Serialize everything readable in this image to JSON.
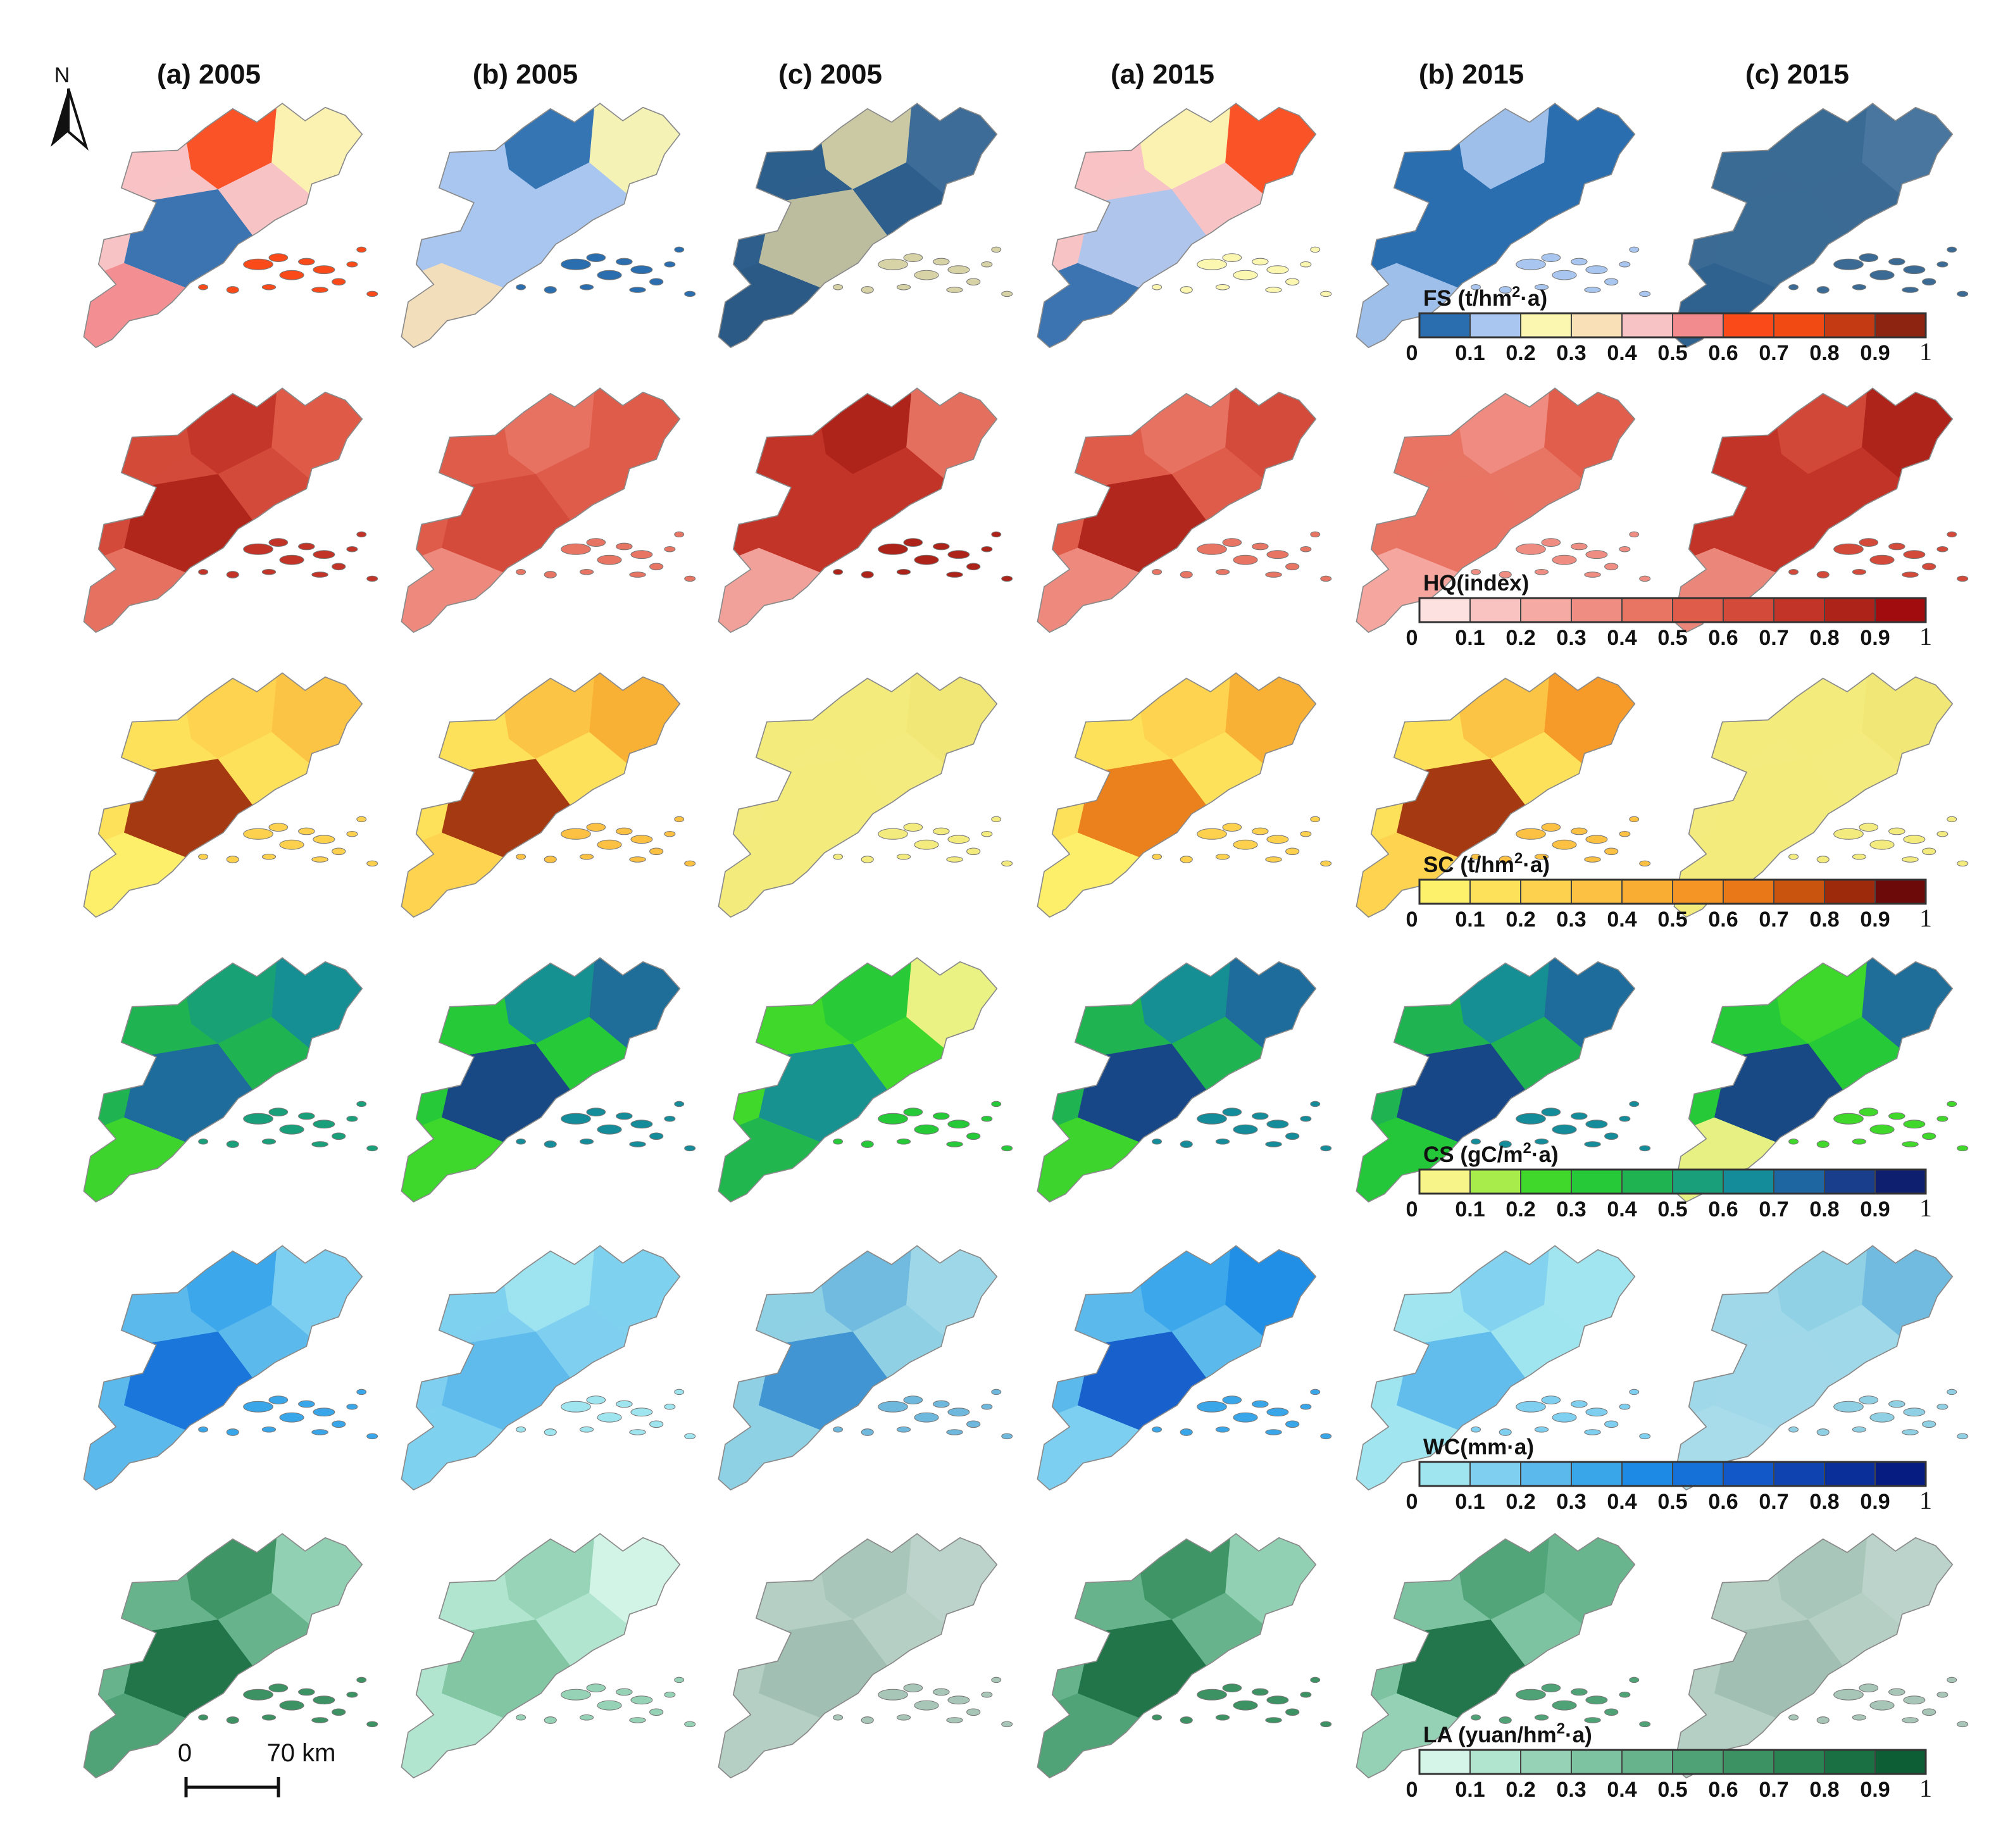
{
  "figure": {
    "column_titles": [
      "(a) 2005",
      "(b) 2005",
      "(c) 2005",
      "(a) 2015",
      "(b) 2015",
      "(c) 2015"
    ],
    "rows": [
      {
        "id": "fs",
        "legend_title": "FS (t/hm²·a)",
        "legend_title_base": "FS (t/hm",
        "legend_title_sup": "2",
        "legend_title_tail": "·a)",
        "colors": [
          "#2b6eaf",
          "#a8c6ef",
          "#fbf6b0",
          "#f9e0b6",
          "#f8c3c5",
          "#f28b8e",
          "#fb4a1a",
          "#f24a13",
          "#c33a13",
          "#8d2411"
        ],
        "map_tints": [
          [
            "#f8c3c5",
            "#fb4a1a",
            "#fbf6b0",
            "#2b6eaf",
            "#f28b8e"
          ],
          [
            "#a8c6ef",
            "#2b6eaf",
            "#fbf6b0",
            "#a8c6ef",
            "#f9e0b6"
          ],
          [
            "#2e5f8c",
            "#d8d3a6",
            "#3f6e9a",
            "#c9c5a0",
            "#2b5a85"
          ],
          [
            "#f8c3c5",
            "#fbf6b0",
            "#fb4a1a",
            "#a8c6ef",
            "#2b6eaf"
          ],
          [
            "#2b6eaf",
            "#a8c6ef",
            "#2b6eaf",
            "#2b6eaf",
            "#a8c6ef"
          ],
          [
            "#3b6b95",
            "#3b6b95",
            "#4a77a0",
            "#3b6b95",
            "#2f628e"
          ]
        ]
      },
      {
        "id": "hq",
        "legend_title": "HQ(index)",
        "legend_title_base": "HQ(index)",
        "legend_title_sup": "",
        "legend_title_tail": "",
        "colors": [
          "#fde0e0",
          "#f8c3c0",
          "#f5aaa3",
          "#ef8d82",
          "#e87464",
          "#df5c4a",
          "#d34a3a",
          "#c23428",
          "#ad2319",
          "#a10d0e"
        ],
        "map_tints": [
          [
            "#d34a3a",
            "#c23428",
            "#df5c4a",
            "#ad2319",
            "#e87464"
          ],
          [
            "#df5c4a",
            "#e87464",
            "#df5c4a",
            "#d34a3a",
            "#ef8d82"
          ],
          [
            "#c23428",
            "#ad2319",
            "#e87464",
            "#c23428",
            "#f5aaa3"
          ],
          [
            "#df5c4a",
            "#e87464",
            "#d34a3a",
            "#ad2319",
            "#ef8d82"
          ],
          [
            "#e87464",
            "#ef8d82",
            "#df5c4a",
            "#e87464",
            "#f5aaa3"
          ],
          [
            "#c23428",
            "#d34a3a",
            "#ad2319",
            "#c23428",
            "#ef8d82"
          ]
        ]
      },
      {
        "id": "sc",
        "legend_title": "SC (t/hm²·a)",
        "legend_title_base": "SC (t/hm",
        "legend_title_sup": "2",
        "legend_title_tail": "·a)",
        "colors": [
          "#fdf06b",
          "#fde15b",
          "#fdd14e",
          "#fcc142",
          "#f9ad32",
          "#f59525",
          "#e97818",
          "#c9540e",
          "#9d2a0b",
          "#6b0a08"
        ],
        "map_tints": [
          [
            "#fde15b",
            "#fdd14e",
            "#fcc142",
            "#9d2a0b",
            "#fdf06b"
          ],
          [
            "#fde15b",
            "#fcc142",
            "#f9ad32",
            "#9d2a0b",
            "#fdd14e"
          ],
          [
            "#f3eb7d",
            "#f3eb7d",
            "#f1e675",
            "#f3eb7d",
            "#f3eb7d"
          ],
          [
            "#fde15b",
            "#fdd14e",
            "#f9ad32",
            "#e97818",
            "#fdf06b"
          ],
          [
            "#fde15b",
            "#fcc142",
            "#f59525",
            "#9d2a0b",
            "#fdd14e"
          ],
          [
            "#f3eb7d",
            "#f3eb7d",
            "#f1e675",
            "#f3eb7d",
            "#f3eb7d"
          ]
        ]
      },
      {
        "id": "cs",
        "legend_title": "CS (gC/m²·a)",
        "legend_title_base": "CS (gC/m",
        "legend_title_sup": "2",
        "legend_title_tail": "·a)",
        "colors": [
          "#f7f48a",
          "#a8ec4c",
          "#40d82a",
          "#26c938",
          "#1fb352",
          "#19a07a",
          "#158c9a",
          "#1e66a2",
          "#183e8c",
          "#0d1f6e"
        ],
        "map_tints": [
          [
            "#1fb352",
            "#19a07a",
            "#158c9a",
            "#1e66a2",
            "#40d82a"
          ],
          [
            "#26c938",
            "#158c9a",
            "#1e66a2",
            "#183e8c",
            "#40d82a"
          ],
          [
            "#40d82a",
            "#26c938",
            "#f7f48a",
            "#158c9a",
            "#1fb352"
          ],
          [
            "#1fb352",
            "#158c9a",
            "#1e66a2",
            "#183e8c",
            "#40d82a"
          ],
          [
            "#1fb352",
            "#158c9a",
            "#1e66a2",
            "#183e8c",
            "#26c938"
          ],
          [
            "#26c938",
            "#40d82a",
            "#1e66a2",
            "#183e8c",
            "#f7f48a"
          ]
        ]
      },
      {
        "id": "wc",
        "legend_title": "WC(mm·a)",
        "legend_title_base": "WC(mm·a)",
        "legend_title_sup": "",
        "legend_title_tail": "",
        "colors": [
          "#9fe5f0",
          "#7fd0f0",
          "#5cb9ec",
          "#3aa6ea",
          "#1d8be6",
          "#1570d8",
          "#1258c8",
          "#0f44b0",
          "#0b2f98",
          "#071c80"
        ],
        "map_tints": [
          [
            "#5cb9ec",
            "#3aa6ea",
            "#7fd0f0",
            "#1570d8",
            "#5cb9ec"
          ],
          [
            "#7fd0f0",
            "#9fe5f0",
            "#7fd0f0",
            "#5cb9ec",
            "#7fd0f0"
          ],
          [
            "#8fd0e4",
            "#6eb8de",
            "#9fd8e8",
            "#3a8fd0",
            "#8fd0e4"
          ],
          [
            "#5cb9ec",
            "#3aa6ea",
            "#1d8be6",
            "#1258c8",
            "#7fd0f0"
          ],
          [
            "#9fe5f0",
            "#7fd0f0",
            "#9fe5f0",
            "#5cb9ec",
            "#9fe5f0"
          ],
          [
            "#9fd8e8",
            "#8fd0e4",
            "#6eb8de",
            "#9fd8e8",
            "#a8dcea"
          ]
        ]
      },
      {
        "id": "la",
        "legend_title": "LA (yuan/hm²·a)",
        "legend_title_base": "LA (yuan/hm",
        "legend_title_sup": "2",
        "legend_title_tail": "·a)",
        "colors": [
          "#d4f5e8",
          "#b2e5cf",
          "#96d3b6",
          "#7ec3a1",
          "#67b48c",
          "#4ea275",
          "#3c9262",
          "#2a8252",
          "#1b7043",
          "#0e5e35"
        ],
        "map_tints": [
          [
            "#67b48c",
            "#3c9262",
            "#96d3b6",
            "#1b7043",
            "#4ea275"
          ],
          [
            "#b2e5cf",
            "#96d3b6",
            "#d4f5e8",
            "#7ec3a1",
            "#b2e5cf"
          ],
          [
            "#b5cfc4",
            "#a8c6b8",
            "#bcd4ca",
            "#9fbfb1",
            "#b5cfc4"
          ],
          [
            "#67b48c",
            "#3c9262",
            "#96d3b6",
            "#1b7043",
            "#4ea275"
          ],
          [
            "#7ec3a1",
            "#4ea275",
            "#67b48c",
            "#1b7043",
            "#96d3b6"
          ],
          [
            "#b5cfc4",
            "#a8c6b8",
            "#bcd4ca",
            "#9fbfb1",
            "#b5cfc4"
          ]
        ]
      }
    ],
    "tick_labels": [
      "0",
      "0.1",
      "0.2",
      "0.3",
      "0.4",
      "0.5",
      "0.6",
      "0.7",
      "0.8",
      "0.9",
      "1"
    ],
    "scale_bar": {
      "start_label": "0",
      "end_label": "70 km"
    },
    "north_arrow_label": "N",
    "icons": {
      "north_arrow": "north-arrow-icon",
      "scale_bar": "scale-bar-icon"
    }
  }
}
